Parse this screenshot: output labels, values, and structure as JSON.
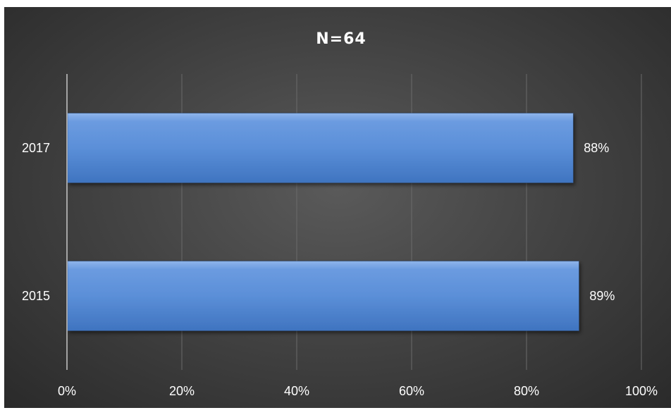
{
  "chart_data": {
    "type": "bar",
    "orientation": "horizontal",
    "title": "N=64",
    "categories": [
      "2017",
      "2015"
    ],
    "values": [
      88,
      89
    ],
    "data_labels": [
      "88%",
      "89%"
    ],
    "xlim": [
      0,
      100
    ],
    "x_ticks": [
      "0%",
      "20%",
      "40%",
      "60%",
      "80%",
      "100%"
    ],
    "grid": true,
    "bar_color": "#4f81c9",
    "background_color": "#4a4a4a"
  }
}
